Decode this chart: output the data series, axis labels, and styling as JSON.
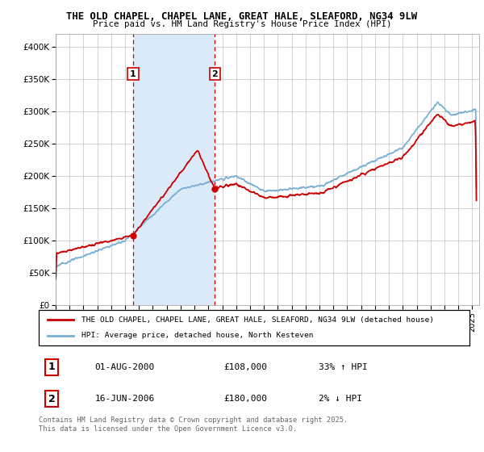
{
  "title_line1": "THE OLD CHAPEL, CHAPEL LANE, GREAT HALE, SLEAFORD, NG34 9LW",
  "title_line2": "Price paid vs. HM Land Registry's House Price Index (HPI)",
  "background_color": "#ffffff",
  "plot_bg_color": "#ffffff",
  "grid_color": "#cccccc",
  "red_line_color": "#cc0000",
  "blue_line_color": "#7ab0d4",
  "sale1_date_x": 2000.58,
  "sale1_price": 108000,
  "sale1_label": "1",
  "sale2_date_x": 2006.46,
  "sale2_price": 180000,
  "sale2_label": "2",
  "xmin": 1995,
  "xmax": 2025.5,
  "ymin": 0,
  "ymax": 420000,
  "yticks": [
    0,
    50000,
    100000,
    150000,
    200000,
    250000,
    300000,
    350000,
    400000
  ],
  "ytick_labels": [
    "£0",
    "£50K",
    "£100K",
    "£150K",
    "£200K",
    "£250K",
    "£300K",
    "£350K",
    "£400K"
  ],
  "legend1_label": "THE OLD CHAPEL, CHAPEL LANE, GREAT HALE, SLEAFORD, NG34 9LW (detached house)",
  "legend2_label": "HPI: Average price, detached house, North Kesteven",
  "table_row1": [
    "1",
    "01-AUG-2000",
    "£108,000",
    "33% ↑ HPI"
  ],
  "table_row2": [
    "2",
    "16-JUN-2006",
    "£180,000",
    "2% ↓ HPI"
  ],
  "footer": "Contains HM Land Registry data © Crown copyright and database right 2025.\nThis data is licensed under the Open Government Licence v3.0.",
  "shade_color": "#daeaf8"
}
